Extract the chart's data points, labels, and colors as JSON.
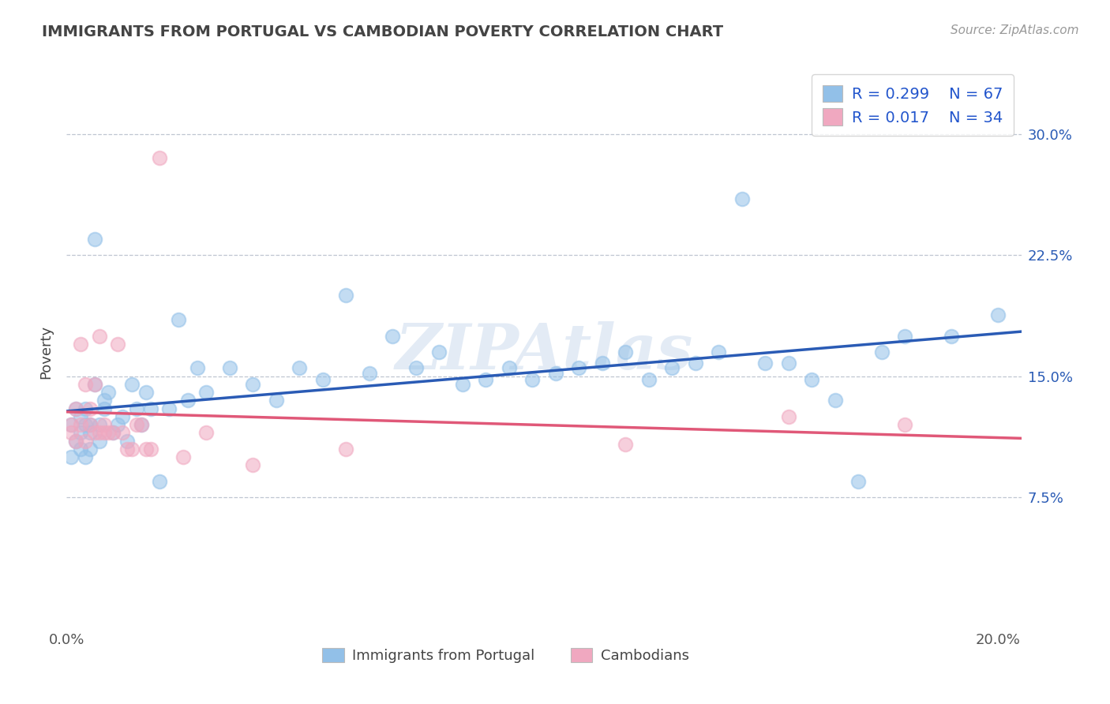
{
  "title": "IMMIGRANTS FROM PORTUGAL VS CAMBODIAN POVERTY CORRELATION CHART",
  "source": "Source: ZipAtlas.com",
  "ylabel": "Poverty",
  "xlim": [
    0.0,
    0.205
  ],
  "ylim": [
    -0.005,
    0.335
  ],
  "yticks": [
    0.075,
    0.15,
    0.225,
    0.3
  ],
  "ytick_labels": [
    "7.5%",
    "15.0%",
    "22.5%",
    "30.0%"
  ],
  "xticks": [
    0.0,
    0.2
  ],
  "xtick_labels": [
    "0.0%",
    "20.0%"
  ],
  "blue_color": "#92c0e8",
  "pink_color": "#f0a8c0",
  "blue_line_color": "#2a5bb5",
  "pink_line_color": "#e05878",
  "grid_color": "#b8c0cc",
  "legend_R1": "R = 0.299",
  "legend_N1": "N = 67",
  "legend_R2": "R = 0.017",
  "legend_N2": "N = 34",
  "legend_label1": "Immigrants from Portugal",
  "legend_label2": "Cambodians",
  "watermark": "ZIPAtlas",
  "title_color": "#444444",
  "source_color": "#999999",
  "tick_color_x": "#555555",
  "tick_color_y": "#2a5bb5",
  "legend_text_color": "#2255cc",
  "blue_x": [
    0.001,
    0.001,
    0.002,
    0.002,
    0.003,
    0.003,
    0.003,
    0.004,
    0.004,
    0.004,
    0.005,
    0.005,
    0.005,
    0.006,
    0.006,
    0.007,
    0.007,
    0.008,
    0.008,
    0.009,
    0.01,
    0.011,
    0.012,
    0.013,
    0.014,
    0.015,
    0.016,
    0.017,
    0.018,
    0.02,
    0.022,
    0.024,
    0.026,
    0.028,
    0.03,
    0.035,
    0.04,
    0.045,
    0.05,
    0.055,
    0.06,
    0.065,
    0.07,
    0.075,
    0.08,
    0.085,
    0.09,
    0.095,
    0.1,
    0.105,
    0.11,
    0.115,
    0.12,
    0.125,
    0.13,
    0.135,
    0.14,
    0.145,
    0.15,
    0.155,
    0.16,
    0.165,
    0.17,
    0.175,
    0.18,
    0.19,
    0.2
  ],
  "blue_y": [
    0.12,
    0.1,
    0.11,
    0.13,
    0.105,
    0.115,
    0.125,
    0.12,
    0.1,
    0.13,
    0.115,
    0.105,
    0.12,
    0.235,
    0.145,
    0.11,
    0.12,
    0.13,
    0.135,
    0.14,
    0.115,
    0.12,
    0.125,
    0.11,
    0.145,
    0.13,
    0.12,
    0.14,
    0.13,
    0.085,
    0.13,
    0.185,
    0.135,
    0.155,
    0.14,
    0.155,
    0.145,
    0.135,
    0.155,
    0.148,
    0.2,
    0.152,
    0.175,
    0.155,
    0.165,
    0.145,
    0.148,
    0.155,
    0.148,
    0.152,
    0.155,
    0.158,
    0.165,
    0.148,
    0.155,
    0.158,
    0.165,
    0.26,
    0.158,
    0.158,
    0.148,
    0.135,
    0.085,
    0.165,
    0.175,
    0.175,
    0.188
  ],
  "pink_x": [
    0.001,
    0.001,
    0.002,
    0.002,
    0.003,
    0.003,
    0.004,
    0.004,
    0.005,
    0.005,
    0.006,
    0.006,
    0.007,
    0.007,
    0.008,
    0.008,
    0.009,
    0.01,
    0.011,
    0.012,
    0.013,
    0.014,
    0.015,
    0.016,
    0.017,
    0.018,
    0.02,
    0.025,
    0.03,
    0.04,
    0.06,
    0.12,
    0.155,
    0.18
  ],
  "pink_y": [
    0.12,
    0.115,
    0.13,
    0.11,
    0.17,
    0.12,
    0.145,
    0.11,
    0.13,
    0.12,
    0.145,
    0.115,
    0.115,
    0.175,
    0.12,
    0.115,
    0.115,
    0.115,
    0.17,
    0.115,
    0.105,
    0.105,
    0.12,
    0.12,
    0.105,
    0.105,
    0.285,
    0.1,
    0.115,
    0.095,
    0.105,
    0.108,
    0.125,
    0.12
  ]
}
